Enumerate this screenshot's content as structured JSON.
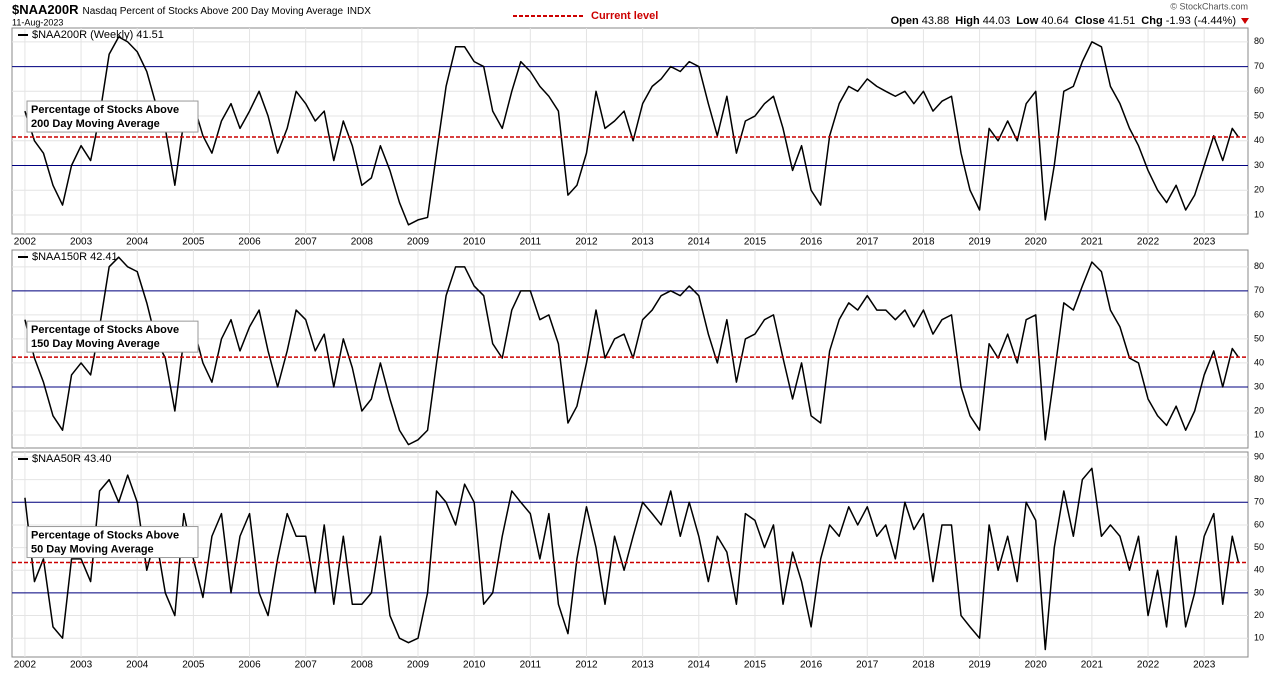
{
  "header": {
    "symbol": "$NAA200R",
    "description": "Nasdaq Percent of Stocks Above 200 Day Moving Average",
    "exchange": "INDX",
    "date": "11-Aug-2023",
    "legend_label": "Current level",
    "legend_color": "#cc0000",
    "copyright": "© StockCharts.com",
    "quotes": [
      {
        "label": "Open",
        "value": "43.88"
      },
      {
        "label": "High",
        "value": "44.03"
      },
      {
        "label": "Low",
        "value": "40.64"
      },
      {
        "label": "Close",
        "value": "41.51"
      },
      {
        "label": "Chg",
        "value": "-1.93 (-4.44%)"
      }
    ]
  },
  "chart_data": [
    {
      "type": "line",
      "title": "$NAA200R (Weekly) 41.51",
      "annotation": [
        "Percentage of Stocks Above",
        "200 Day Moving Average"
      ],
      "x": [
        2002.0,
        2002.17,
        2002.33,
        2002.5,
        2002.67,
        2002.83,
        2003.0,
        2003.17,
        2003.33,
        2003.5,
        2003.67,
        2003.83,
        2004.0,
        2004.17,
        2004.33,
        2004.5,
        2004.67,
        2004.83,
        2005.0,
        2005.17,
        2005.33,
        2005.5,
        2005.67,
        2005.83,
        2006.0,
        2006.17,
        2006.33,
        2006.5,
        2006.67,
        2006.83,
        2007.0,
        2007.17,
        2007.33,
        2007.5,
        2007.67,
        2007.83,
        2008.0,
        2008.17,
        2008.33,
        2008.5,
        2008.67,
        2008.83,
        2009.0,
        2009.17,
        2009.33,
        2009.5,
        2009.67,
        2009.83,
        2010.0,
        2010.17,
        2010.33,
        2010.5,
        2010.67,
        2010.83,
        2011.0,
        2011.17,
        2011.33,
        2011.5,
        2011.67,
        2011.83,
        2012.0,
        2012.17,
        2012.33,
        2012.5,
        2012.67,
        2012.83,
        2013.0,
        2013.17,
        2013.33,
        2013.5,
        2013.67,
        2013.83,
        2014.0,
        2014.17,
        2014.33,
        2014.5,
        2014.67,
        2014.83,
        2015.0,
        2015.17,
        2015.33,
        2015.5,
        2015.67,
        2015.83,
        2016.0,
        2016.17,
        2016.33,
        2016.5,
        2016.67,
        2016.83,
        2017.0,
        2017.17,
        2017.33,
        2017.5,
        2017.67,
        2017.83,
        2018.0,
        2018.17,
        2018.33,
        2018.5,
        2018.67,
        2018.83,
        2019.0,
        2019.17,
        2019.33,
        2019.5,
        2019.67,
        2019.83,
        2020.0,
        2020.17,
        2020.33,
        2020.5,
        2020.67,
        2020.83,
        2021.0,
        2021.17,
        2021.33,
        2021.5,
        2021.67,
        2021.83,
        2022.0,
        2022.17,
        2022.33,
        2022.5,
        2022.67,
        2022.83,
        2023.0,
        2023.17,
        2023.33,
        2023.5,
        2023.61
      ],
      "series": [
        {
          "name": "$NAA200R (Weekly) 41.51",
          "color": "#000000",
          "values": [
            52,
            40,
            35,
            22,
            14,
            30,
            38,
            32,
            50,
            75,
            82,
            80,
            76,
            68,
            55,
            45,
            22,
            48,
            55,
            42,
            35,
            48,
            55,
            45,
            52,
            60,
            50,
            35,
            45,
            60,
            55,
            48,
            52,
            32,
            48,
            38,
            22,
            25,
            38,
            28,
            15,
            6,
            8,
            9,
            35,
            62,
            78,
            78,
            72,
            70,
            52,
            45,
            60,
            72,
            68,
            62,
            58,
            52,
            18,
            22,
            35,
            60,
            45,
            48,
            52,
            40,
            55,
            62,
            65,
            70,
            68,
            72,
            70,
            55,
            42,
            58,
            35,
            48,
            50,
            55,
            58,
            45,
            28,
            38,
            20,
            14,
            42,
            55,
            62,
            60,
            65,
            62,
            60,
            58,
            60,
            55,
            60,
            52,
            56,
            58,
            35,
            20,
            12,
            45,
            40,
            48,
            40,
            55,
            60,
            8,
            30,
            60,
            62,
            72,
            80,
            78,
            62,
            55,
            45,
            38,
            28,
            20,
            15,
            22,
            12,
            18,
            30,
            42,
            32,
            45,
            41.51
          ]
        }
      ],
      "reference_line": 41.51,
      "reference_color": "#cc0000",
      "hlines": [
        70,
        30
      ],
      "hline_color": "#000080",
      "xlim": [
        2001.77,
        2023.78
      ],
      "xticks": [
        2002,
        2003,
        2004,
        2005,
        2006,
        2007,
        2008,
        2009,
        2010,
        2011,
        2012,
        2013,
        2014,
        2015,
        2016,
        2017,
        2018,
        2019,
        2020,
        2021,
        2022,
        2023
      ],
      "show_xtick_labels": true,
      "ylim": [
        2.3,
        85.6
      ],
      "yticks": [
        10,
        20,
        30,
        40,
        50,
        60,
        70,
        80
      ],
      "grid": true
    },
    {
      "type": "line",
      "title": "$NAA150R 42.41",
      "annotation": [
        "Percentage of Stocks Above",
        "150 Day Moving Average"
      ],
      "x": [
        2002.0,
        2002.17,
        2002.33,
        2002.5,
        2002.67,
        2002.83,
        2003.0,
        2003.17,
        2003.33,
        2003.5,
        2003.67,
        2003.83,
        2004.0,
        2004.17,
        2004.33,
        2004.5,
        2004.67,
        2004.83,
        2005.0,
        2005.17,
        2005.33,
        2005.5,
        2005.67,
        2005.83,
        2006.0,
        2006.17,
        2006.33,
        2006.5,
        2006.67,
        2006.83,
        2007.0,
        2007.17,
        2007.33,
        2007.5,
        2007.67,
        2007.83,
        2008.0,
        2008.17,
        2008.33,
        2008.5,
        2008.67,
        2008.83,
        2009.0,
        2009.17,
        2009.33,
        2009.5,
        2009.67,
        2009.83,
        2010.0,
        2010.17,
        2010.33,
        2010.5,
        2010.67,
        2010.83,
        2011.0,
        2011.17,
        2011.33,
        2011.5,
        2011.67,
        2011.83,
        2012.0,
        2012.17,
        2012.33,
        2012.5,
        2012.67,
        2012.83,
        2013.0,
        2013.17,
        2013.33,
        2013.5,
        2013.67,
        2013.83,
        2014.0,
        2014.17,
        2014.33,
        2014.5,
        2014.67,
        2014.83,
        2015.0,
        2015.17,
        2015.33,
        2015.5,
        2015.67,
        2015.83,
        2016.0,
        2016.17,
        2016.33,
        2016.5,
        2016.67,
        2016.83,
        2017.0,
        2017.17,
        2017.33,
        2017.5,
        2017.67,
        2017.83,
        2018.0,
        2018.17,
        2018.33,
        2018.5,
        2018.67,
        2018.83,
        2019.0,
        2019.17,
        2019.33,
        2019.5,
        2019.67,
        2019.83,
        2020.0,
        2020.17,
        2020.33,
        2020.5,
        2020.67,
        2020.83,
        2021.0,
        2021.17,
        2021.33,
        2021.5,
        2021.67,
        2021.83,
        2022.0,
        2022.17,
        2022.33,
        2022.5,
        2022.67,
        2022.83,
        2023.0,
        2023.17,
        2023.33,
        2023.5,
        2023.61
      ],
      "series": [
        {
          "name": "$NAA150R 42.41",
          "color": "#000000",
          "values": [
            58,
            42,
            32,
            18,
            12,
            35,
            40,
            35,
            55,
            80,
            84,
            80,
            78,
            65,
            50,
            42,
            20,
            50,
            55,
            40,
            32,
            50,
            58,
            45,
            55,
            62,
            45,
            30,
            45,
            62,
            58,
            45,
            52,
            30,
            50,
            38,
            20,
            25,
            40,
            25,
            12,
            6,
            8,
            12,
            40,
            68,
            80,
            80,
            72,
            68,
            48,
            42,
            62,
            70,
            70,
            58,
            60,
            48,
            15,
            22,
            40,
            62,
            42,
            50,
            52,
            42,
            58,
            62,
            68,
            70,
            68,
            72,
            68,
            52,
            40,
            58,
            32,
            50,
            52,
            58,
            60,
            42,
            25,
            40,
            18,
            15,
            45,
            58,
            65,
            62,
            68,
            62,
            62,
            58,
            62,
            55,
            62,
            52,
            58,
            60,
            30,
            18,
            12,
            48,
            42,
            52,
            40,
            58,
            60,
            8,
            35,
            65,
            62,
            72,
            82,
            78,
            62,
            55,
            42,
            40,
            25,
            18,
            14,
            22,
            12,
            20,
            35,
            45,
            30,
            46,
            42.41
          ]
        }
      ],
      "reference_line": 42.41,
      "reference_color": "#cc0000",
      "hlines": [
        70,
        30
      ],
      "hline_color": "#000080",
      "xlim": [
        2001.77,
        2023.78
      ],
      "xticks": [
        2002,
        2003,
        2004,
        2005,
        2006,
        2007,
        2008,
        2009,
        2010,
        2011,
        2012,
        2013,
        2014,
        2015,
        2016,
        2017,
        2018,
        2019,
        2020,
        2021,
        2022,
        2023
      ],
      "show_xtick_labels": false,
      "ylim": [
        4.6,
        87
      ],
      "yticks": [
        10,
        20,
        30,
        40,
        50,
        60,
        70,
        80
      ],
      "grid": true
    },
    {
      "type": "line",
      "title": "$NAA50R 43.40",
      "annotation": [
        "Percentage of Stocks Above",
        "50 Day Moving Average"
      ],
      "x": [
        2002.0,
        2002.17,
        2002.33,
        2002.5,
        2002.67,
        2002.83,
        2003.0,
        2003.17,
        2003.33,
        2003.5,
        2003.67,
        2003.83,
        2004.0,
        2004.17,
        2004.33,
        2004.5,
        2004.67,
        2004.83,
        2005.0,
        2005.17,
        2005.33,
        2005.5,
        2005.67,
        2005.83,
        2006.0,
        2006.17,
        2006.33,
        2006.5,
        2006.67,
        2006.83,
        2007.0,
        2007.17,
        2007.33,
        2007.5,
        2007.67,
        2007.83,
        2008.0,
        2008.17,
        2008.33,
        2008.5,
        2008.67,
        2008.83,
        2009.0,
        2009.17,
        2009.33,
        2009.5,
        2009.67,
        2009.83,
        2010.0,
        2010.17,
        2010.33,
        2010.5,
        2010.67,
        2010.83,
        2011.0,
        2011.17,
        2011.33,
        2011.5,
        2011.67,
        2011.83,
        2012.0,
        2012.17,
        2012.33,
        2012.5,
        2012.67,
        2012.83,
        2013.0,
        2013.17,
        2013.33,
        2013.5,
        2013.67,
        2013.83,
        2014.0,
        2014.17,
        2014.33,
        2014.5,
        2014.67,
        2014.83,
        2015.0,
        2015.17,
        2015.33,
        2015.5,
        2015.67,
        2015.83,
        2016.0,
        2016.17,
        2016.33,
        2016.5,
        2016.67,
        2016.83,
        2017.0,
        2017.17,
        2017.33,
        2017.5,
        2017.67,
        2017.83,
        2018.0,
        2018.17,
        2018.33,
        2018.5,
        2018.67,
        2018.83,
        2019.0,
        2019.17,
        2019.33,
        2019.5,
        2019.67,
        2019.83,
        2020.0,
        2020.17,
        2020.33,
        2020.5,
        2020.67,
        2020.83,
        2021.0,
        2021.17,
        2021.33,
        2021.5,
        2021.67,
        2021.83,
        2022.0,
        2022.17,
        2022.33,
        2022.5,
        2022.67,
        2022.83,
        2023.0,
        2023.17,
        2023.33,
        2023.5,
        2023.61
      ],
      "series": [
        {
          "name": "$NAA50R 43.40",
          "color": "#000000",
          "values": [
            72,
            35,
            45,
            15,
            10,
            45,
            45,
            35,
            75,
            80,
            70,
            82,
            70,
            40,
            55,
            30,
            20,
            65,
            45,
            28,
            55,
            65,
            30,
            55,
            65,
            30,
            20,
            45,
            65,
            55,
            55,
            30,
            60,
            25,
            55,
            25,
            25,
            30,
            55,
            20,
            10,
            8,
            10,
            30,
            75,
            70,
            60,
            78,
            70,
            25,
            30,
            55,
            75,
            70,
            65,
            45,
            65,
            25,
            12,
            45,
            68,
            50,
            25,
            55,
            40,
            55,
            70,
            65,
            60,
            75,
            55,
            70,
            55,
            35,
            55,
            48,
            25,
            65,
            62,
            50,
            60,
            25,
            48,
            35,
            15,
            45,
            60,
            55,
            68,
            60,
            68,
            55,
            60,
            45,
            70,
            58,
            65,
            35,
            60,
            60,
            20,
            15,
            10,
            60,
            40,
            55,
            35,
            70,
            62,
            5,
            50,
            75,
            55,
            80,
            85,
            55,
            60,
            55,
            40,
            55,
            20,
            40,
            15,
            55,
            15,
            30,
            55,
            65,
            25,
            55,
            43.4
          ]
        }
      ],
      "reference_line": 43.4,
      "reference_color": "#cc0000",
      "hlines": [
        70,
        30
      ],
      "hline_color": "#000080",
      "xlim": [
        2001.77,
        2023.78
      ],
      "xticks": [
        2002,
        2003,
        2004,
        2005,
        2006,
        2007,
        2008,
        2009,
        2010,
        2011,
        2012,
        2013,
        2014,
        2015,
        2016,
        2017,
        2018,
        2019,
        2020,
        2021,
        2022,
        2023
      ],
      "show_xtick_labels": true,
      "ylim": [
        1.7,
        92.2
      ],
      "yticks": [
        10,
        20,
        30,
        40,
        50,
        60,
        70,
        80,
        90
      ],
      "grid": true
    }
  ]
}
